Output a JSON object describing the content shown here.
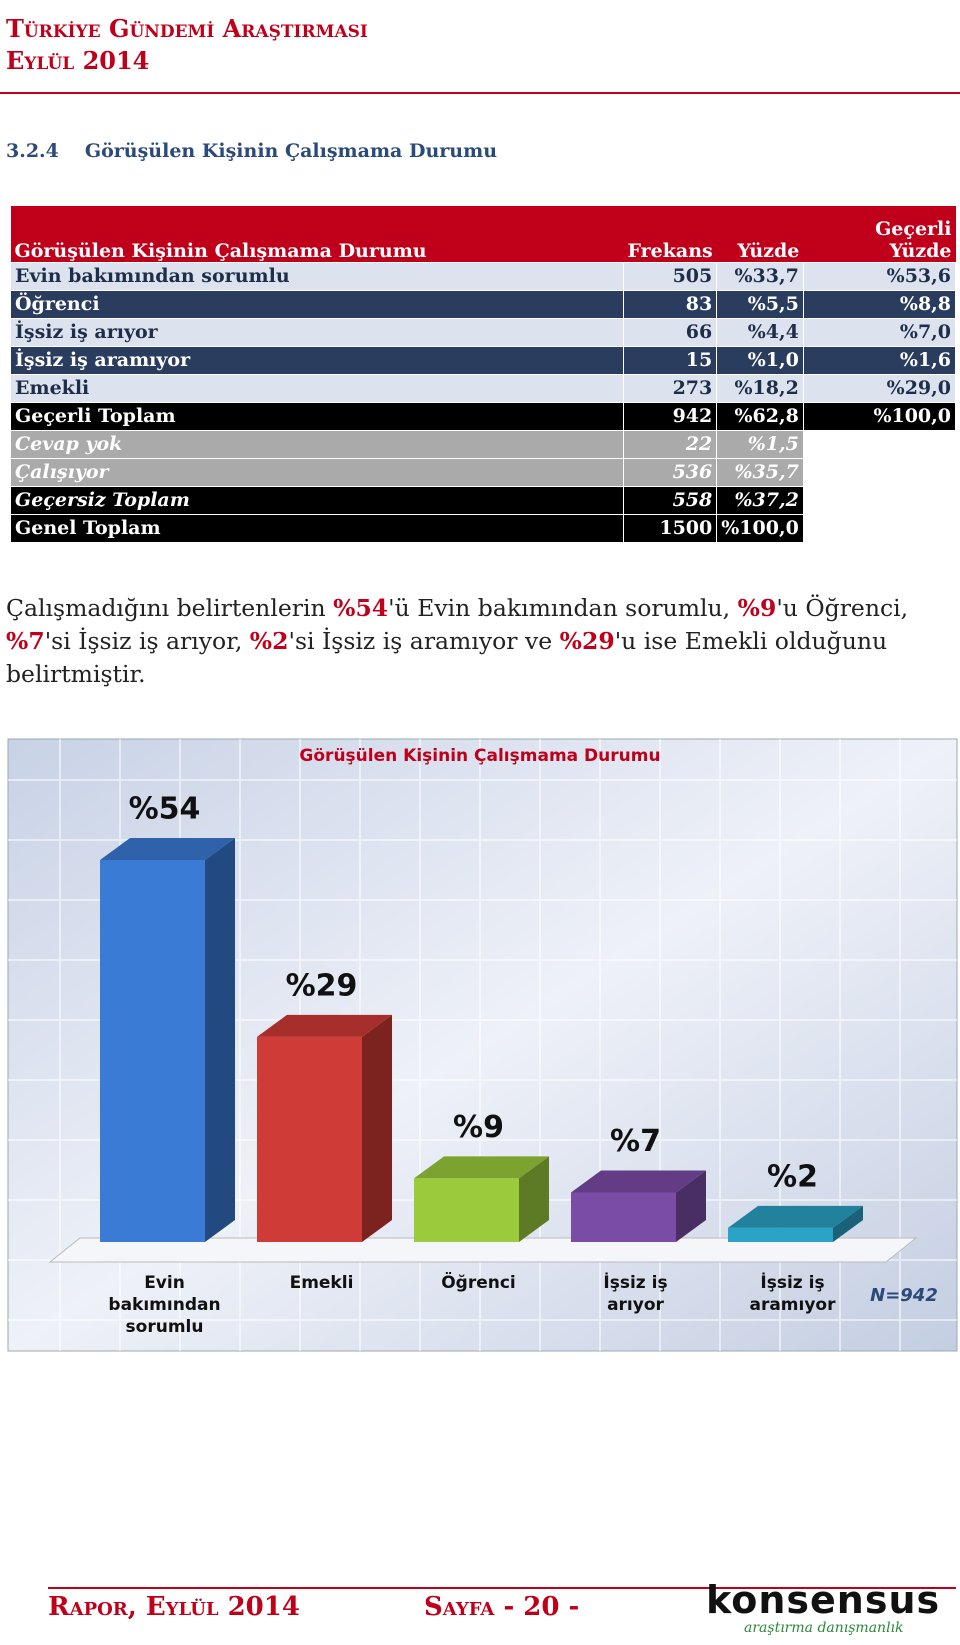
{
  "header": {
    "title": "Türkiye Gündemi Araştırması",
    "date": "Eylül 2014"
  },
  "section": {
    "number": "3.2.4",
    "title": "Görüşülen Kişinin Çalışmama Durumu"
  },
  "table": {
    "headers": [
      "Görüşülen Kişinin Çalışmama Durumu",
      "Frekans",
      "Yüzde",
      "Geçerli Yüzde"
    ],
    "rows": [
      [
        "Evin bakımından sorumlu",
        "505",
        "%33,7",
        "%53,6"
      ],
      [
        "Öğrenci",
        "83",
        "%5,5",
        "%8,8"
      ],
      [
        "İşsiz iş arıyor",
        "66",
        "%4,4",
        "%7,0"
      ],
      [
        "İşsiz iş aramıyor",
        "15",
        "%1,0",
        "%1,6"
      ],
      [
        "Emekli",
        "273",
        "%18,2",
        "%29,0"
      ],
      [
        "Geçerli Toplam",
        "942",
        "%62,8",
        "%100,0"
      ],
      [
        "Cevap yok",
        "22",
        "%1,5"
      ],
      [
        "Çalışıyor",
        "536",
        "%35,7"
      ],
      [
        "Geçersiz Toplam",
        "558",
        "%37,2"
      ],
      [
        "Genel Toplam",
        "1500",
        "%100,0"
      ]
    ]
  },
  "paragraph": [
    "Çalışmadığını belirtenlerin ",
    "%54",
    "'ü Evin bakımından sorumlu, ",
    "%9",
    "'u Öğrenci, ",
    "%7",
    "'si İşsiz iş arıyor, ",
    "%2",
    "'si İşsiz iş aramıyor ve ",
    "%29",
    "'u ise Emekli olduğunu belirtmiştir."
  ],
  "chart_data": {
    "type": "bar",
    "title": "Görüşülen Kişinin Çalışmama Durumu",
    "categories": [
      "Evin bakımından sorumlu",
      "Emekli",
      "Öğrenci",
      "İşsiz iş arıyor",
      "İşsiz iş aramıyor"
    ],
    "values": [
      54,
      29,
      9,
      7,
      2
    ],
    "value_labels": [
      "%54",
      "%29",
      "%9",
      "%7",
      "%2"
    ],
    "colors": [
      "#3a7bd5",
      "#cf3b36",
      "#9bcb3c",
      "#7a4ca6",
      "#2aa3c6"
    ],
    "note": "N=942"
  },
  "footer": {
    "report": "Rapor, Eylül 2014",
    "page": "Sayfa - 20 -",
    "logo": "konsensus",
    "logo_sub": "araştırma danışmanlık"
  }
}
